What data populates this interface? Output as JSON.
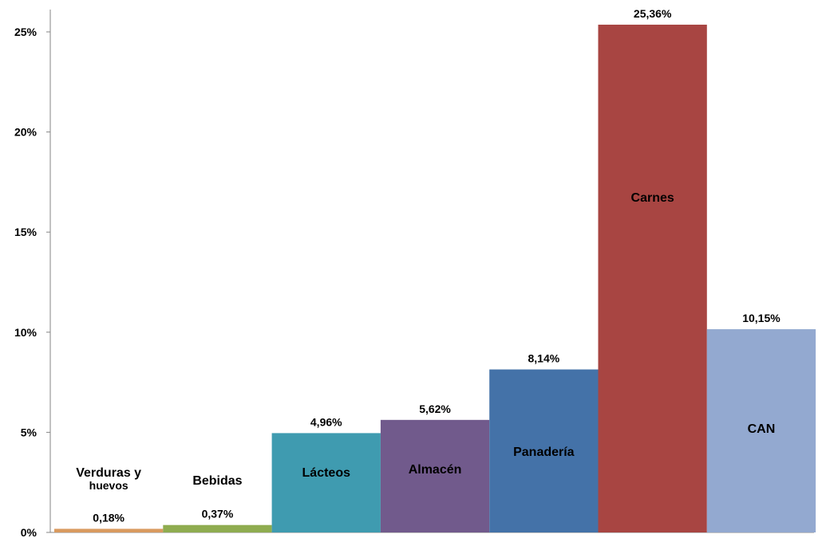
{
  "chart_data": {
    "type": "bar",
    "categories": [
      "Verduras y huevos",
      "Bebidas",
      "Lácteos",
      "Almacén",
      "Panadería",
      "Carnes",
      "CAN"
    ],
    "values": [
      0.18,
      0.37,
      4.96,
      5.62,
      8.14,
      25.36,
      10.15
    ],
    "value_labels": [
      "0,18%",
      "0,37%",
      "4,96%",
      "5,62%",
      "8,14%",
      "25,36%",
      "10,15%"
    ],
    "category_label_lines": [
      [
        "Verduras y",
        "huevos"
      ],
      [
        "Bebidas"
      ],
      [
        "Lácteos"
      ],
      [
        "Almacén"
      ],
      [
        "Panadería"
      ],
      [
        "Carnes"
      ],
      [
        "CAN"
      ]
    ],
    "colors": [
      "#d99a5f",
      "#8fac50",
      "#3f9bb0",
      "#715a8c",
      "#4472a8",
      "#a84542",
      "#93a9d0"
    ],
    "yticks": [
      0,
      5,
      10,
      15,
      20,
      25
    ],
    "ytick_labels": [
      "0%",
      "5%",
      "10%",
      "15%",
      "20%",
      "25%"
    ],
    "ylim": [
      0,
      25.6
    ],
    "title": "",
    "xlabel": "",
    "ylabel": "",
    "grid": false,
    "legend": "none"
  }
}
